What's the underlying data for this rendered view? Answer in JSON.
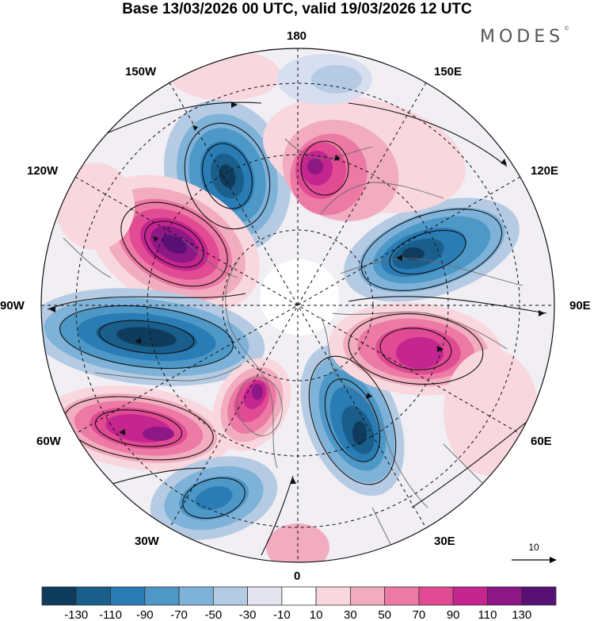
{
  "title": "Base 13/03/2026 00 UTC, valid 19/03/2026 12 UTC",
  "brand": {
    "name": "MODES",
    "mark": "©"
  },
  "longitude_labels": [
    "180",
    "150E",
    "120E",
    "90E",
    "60E",
    "30E",
    "0",
    "30W",
    "60W",
    "90W",
    "120W",
    "150W"
  ],
  "reference_vector": {
    "label": "10",
    "icon": "arrow-right-icon"
  },
  "colorbar": {
    "ticks": [
      "-130",
      "-110",
      "-90",
      "-70",
      "-50",
      "-30",
      "-10",
      "10",
      "30",
      "50",
      "70",
      "90",
      "110",
      "130"
    ],
    "colors": [
      "#0f3b5c",
      "#1a5e8c",
      "#2a7cb5",
      "#4e98c8",
      "#7fb2d8",
      "#b5cbe4",
      "#e4e4f0",
      "#ffffff",
      "#f9d7de",
      "#f2acc0",
      "#ec7aa4",
      "#e04b93",
      "#c4258f",
      "#8c1785",
      "#581075"
    ]
  }
}
